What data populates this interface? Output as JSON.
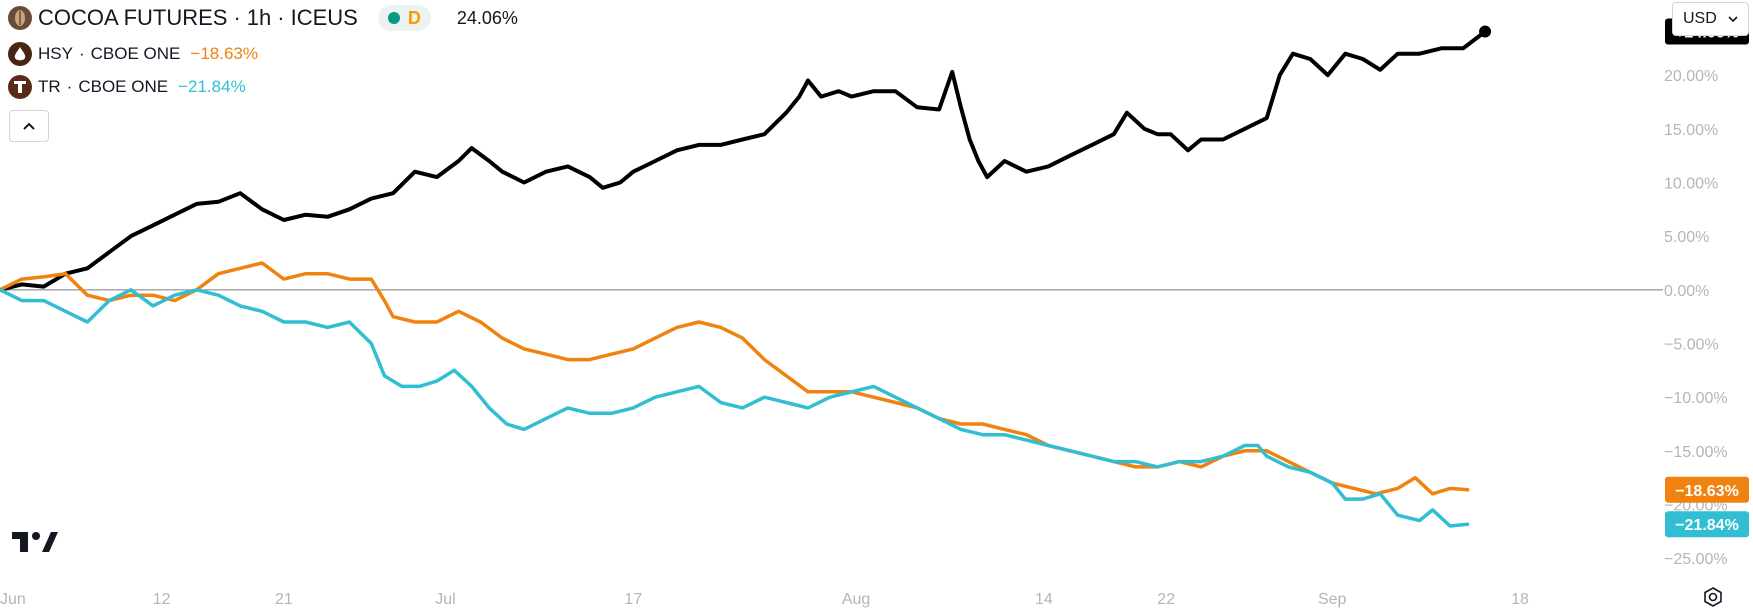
{
  "header": {
    "symbol": "COCOA FUTURES",
    "interval": "1h",
    "exchange": "ICEUS",
    "separator": "·",
    "badge_letter": "D",
    "change": "24.06%"
  },
  "compare": [
    {
      "symbol": "HSY",
      "exchange": "CBOE ONE",
      "change": "−18.63%"
    },
    {
      "symbol": "TR",
      "exchange": "CBOE ONE",
      "change": "−21.84%"
    }
  ],
  "toolbar": {
    "currency": "USD",
    "collapse_icon": "chevron-up-icon",
    "settings_icon": "settings-icon"
  },
  "colors": {
    "cocoa": "#000000",
    "hsy": "#f0820f",
    "tr": "#32bed2",
    "text": "#131722",
    "axis": "#b2b5be"
  },
  "chart_data": {
    "type": "line",
    "title": "COCOA FUTURES · 1h · ICEUS",
    "y_unit": "percent change",
    "ylim": [
      -27.5,
      27
    ],
    "y_ticks": [
      "20.00%",
      "15.00%",
      "10.00%",
      "5.00%",
      "0.00%",
      "−5.00%",
      "−10.00%",
      "−15.00%",
      "−20.00%",
      "−25.00%"
    ],
    "y_tick_values": [
      20,
      15,
      10,
      5,
      0,
      -5,
      -10,
      -15,
      -20,
      -25
    ],
    "x_ticks": [
      "Jun",
      "12",
      "21",
      "Jul",
      "17",
      "Aug",
      "14",
      "22",
      "Sep",
      "18"
    ],
    "x_tick_index": [
      0,
      37,
      65,
      102,
      145,
      196,
      239,
      267,
      305,
      348
    ],
    "index_range": [
      0,
      348
    ],
    "baseline": 0,
    "series": [
      {
        "name": "COCOA FUTURES",
        "color": "#000000",
        "last_label": "+24.06%",
        "points": [
          [
            0,
            0
          ],
          [
            5,
            0.5
          ],
          [
            10,
            0.3
          ],
          [
            15,
            1.5
          ],
          [
            20,
            2
          ],
          [
            25,
            3.5
          ],
          [
            30,
            5
          ],
          [
            35,
            6
          ],
          [
            40,
            7
          ],
          [
            45,
            8
          ],
          [
            50,
            8.2
          ],
          [
            55,
            9
          ],
          [
            60,
            7.5
          ],
          [
            65,
            6.5
          ],
          [
            70,
            7
          ],
          [
            75,
            6.8
          ],
          [
            80,
            7.5
          ],
          [
            85,
            8.5
          ],
          [
            90,
            9
          ],
          [
            95,
            11
          ],
          [
            100,
            10.5
          ],
          [
            105,
            12
          ],
          [
            108,
            13.2
          ],
          [
            112,
            12
          ],
          [
            115,
            11
          ],
          [
            120,
            10
          ],
          [
            125,
            11
          ],
          [
            130,
            11.5
          ],
          [
            135,
            10.5
          ],
          [
            138,
            9.5
          ],
          [
            142,
            10
          ],
          [
            145,
            11
          ],
          [
            150,
            12
          ],
          [
            155,
            13
          ],
          [
            160,
            13.5
          ],
          [
            165,
            13.5
          ],
          [
            170,
            14
          ],
          [
            175,
            14.5
          ],
          [
            180,
            16.5
          ],
          [
            183,
            18
          ],
          [
            185,
            19.5
          ],
          [
            188,
            18
          ],
          [
            192,
            18.5
          ],
          [
            195,
            18
          ],
          [
            200,
            18.5
          ],
          [
            205,
            18.5
          ],
          [
            210,
            17
          ],
          [
            215,
            16.8
          ],
          [
            218,
            20.3
          ],
          [
            220,
            17
          ],
          [
            222,
            14
          ],
          [
            224,
            12
          ],
          [
            226,
            10.5
          ],
          [
            230,
            12
          ],
          [
            235,
            11
          ],
          [
            240,
            11.5
          ],
          [
            245,
            12.5
          ],
          [
            250,
            13.5
          ],
          [
            255,
            14.5
          ],
          [
            258,
            16.5
          ],
          [
            262,
            15
          ],
          [
            265,
            14.5
          ],
          [
            268,
            14.5
          ],
          [
            272,
            13
          ],
          [
            275,
            14
          ],
          [
            280,
            14
          ],
          [
            285,
            15
          ],
          [
            290,
            16
          ],
          [
            293,
            20
          ],
          [
            296,
            22
          ],
          [
            300,
            21.5
          ],
          [
            304,
            20
          ],
          [
            308,
            22
          ],
          [
            312,
            21.5
          ],
          [
            316,
            20.5
          ],
          [
            320,
            22
          ],
          [
            325,
            22
          ],
          [
            330,
            22.5
          ],
          [
            335,
            22.5
          ],
          [
            340,
            24.06
          ]
        ]
      },
      {
        "name": "HSY",
        "color": "#f0820f",
        "last_label": "−18.63%",
        "points": [
          [
            0,
            0
          ],
          [
            5,
            1
          ],
          [
            10,
            1.2
          ],
          [
            15,
            1.5
          ],
          [
            20,
            -0.5
          ],
          [
            25,
            -1
          ],
          [
            30,
            -0.5
          ],
          [
            35,
            -0.5
          ],
          [
            40,
            -1
          ],
          [
            45,
            0
          ],
          [
            50,
            1.5
          ],
          [
            55,
            2
          ],
          [
            60,
            2.5
          ],
          [
            65,
            1
          ],
          [
            70,
            1.5
          ],
          [
            75,
            1.5
          ],
          [
            80,
            1
          ],
          [
            85,
            1
          ],
          [
            88,
            -1
          ],
          [
            90,
            -2.5
          ],
          [
            95,
            -3
          ],
          [
            100,
            -3
          ],
          [
            105,
            -2
          ],
          [
            110,
            -3
          ],
          [
            115,
            -4.5
          ],
          [
            120,
            -5.5
          ],
          [
            125,
            -6
          ],
          [
            130,
            -6.5
          ],
          [
            135,
            -6.5
          ],
          [
            140,
            -6
          ],
          [
            145,
            -5.5
          ],
          [
            150,
            -4.5
          ],
          [
            155,
            -3.5
          ],
          [
            160,
            -3
          ],
          [
            165,
            -3.5
          ],
          [
            170,
            -4.5
          ],
          [
            175,
            -6.5
          ],
          [
            180,
            -8
          ],
          [
            185,
            -9.5
          ],
          [
            190,
            -9.5
          ],
          [
            195,
            -9.5
          ],
          [
            200,
            -10
          ],
          [
            205,
            -10.5
          ],
          [
            210,
            -11
          ],
          [
            215,
            -12
          ],
          [
            220,
            -12.5
          ],
          [
            225,
            -12.5
          ],
          [
            230,
            -13
          ],
          [
            235,
            -13.5
          ],
          [
            240,
            -14.5
          ],
          [
            245,
            -15
          ],
          [
            250,
            -15.5
          ],
          [
            255,
            -16
          ],
          [
            260,
            -16.5
          ],
          [
            265,
            -16.5
          ],
          [
            270,
            -16
          ],
          [
            275,
            -16.5
          ],
          [
            280,
            -15.5
          ],
          [
            285,
            -15
          ],
          [
            290,
            -15
          ],
          [
            295,
            -16
          ],
          [
            300,
            -17
          ],
          [
            305,
            -18
          ],
          [
            310,
            -18.5
          ],
          [
            315,
            -19
          ],
          [
            320,
            -18.5
          ],
          [
            324,
            -17.5
          ],
          [
            328,
            -19
          ],
          [
            332,
            -18.5
          ],
          [
            336,
            -18.63
          ]
        ]
      },
      {
        "name": "TR",
        "color": "#32bed2",
        "last_label": "−21.84%",
        "points": [
          [
            0,
            0
          ],
          [
            5,
            -1
          ],
          [
            10,
            -1
          ],
          [
            15,
            -2
          ],
          [
            20,
            -3
          ],
          [
            25,
            -1
          ],
          [
            30,
            0
          ],
          [
            35,
            -1.5
          ],
          [
            40,
            -0.5
          ],
          [
            45,
            0
          ],
          [
            50,
            -0.5
          ],
          [
            55,
            -1.5
          ],
          [
            60,
            -2
          ],
          [
            65,
            -3
          ],
          [
            70,
            -3
          ],
          [
            75,
            -3.5
          ],
          [
            80,
            -3
          ],
          [
            85,
            -5
          ],
          [
            88,
            -8
          ],
          [
            92,
            -9
          ],
          [
            96,
            -9
          ],
          [
            100,
            -8.5
          ],
          [
            104,
            -7.5
          ],
          [
            108,
            -9
          ],
          [
            112,
            -11
          ],
          [
            116,
            -12.5
          ],
          [
            120,
            -13
          ],
          [
            125,
            -12
          ],
          [
            130,
            -11
          ],
          [
            135,
            -11.5
          ],
          [
            140,
            -11.5
          ],
          [
            145,
            -11
          ],
          [
            150,
            -10
          ],
          [
            155,
            -9.5
          ],
          [
            160,
            -9
          ],
          [
            165,
            -10.5
          ],
          [
            170,
            -11
          ],
          [
            175,
            -10
          ],
          [
            180,
            -10.5
          ],
          [
            185,
            -11
          ],
          [
            190,
            -10
          ],
          [
            195,
            -9.5
          ],
          [
            200,
            -9
          ],
          [
            205,
            -10
          ],
          [
            210,
            -11
          ],
          [
            215,
            -12
          ],
          [
            220,
            -13
          ],
          [
            225,
            -13.5
          ],
          [
            230,
            -13.5
          ],
          [
            235,
            -14
          ],
          [
            240,
            -14.5
          ],
          [
            245,
            -15
          ],
          [
            250,
            -15.5
          ],
          [
            255,
            -16
          ],
          [
            260,
            -16
          ],
          [
            265,
            -16.5
          ],
          [
            270,
            -16
          ],
          [
            275,
            -16
          ],
          [
            280,
            -15.5
          ],
          [
            285,
            -14.5
          ],
          [
            288,
            -14.5
          ],
          [
            290,
            -15.5
          ],
          [
            295,
            -16.5
          ],
          [
            300,
            -17
          ],
          [
            305,
            -18
          ],
          [
            308,
            -19.5
          ],
          [
            312,
            -19.5
          ],
          [
            316,
            -19
          ],
          [
            320,
            -21
          ],
          [
            325,
            -21.5
          ],
          [
            328,
            -20.5
          ],
          [
            332,
            -22
          ],
          [
            336,
            -21.84
          ]
        ]
      }
    ]
  }
}
